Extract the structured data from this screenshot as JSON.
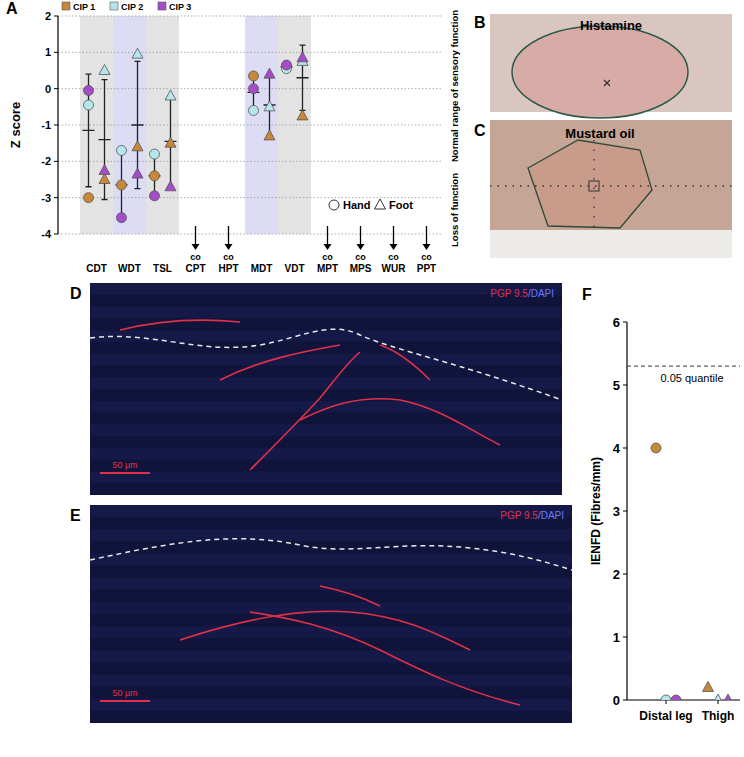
{
  "chart_data": [
    {
      "type": "scatter",
      "panel": "A",
      "y_label": "Z score",
      "categories": [
        "CDT",
        "WDT",
        "TSL",
        "CPT",
        "HPT",
        "MDT",
        "VDT",
        "MPT",
        "MPS",
        "WUR",
        "PPT"
      ],
      "ylim": [
        -4,
        2
      ],
      "yticks": [
        -4,
        -3,
        -2,
        -1,
        0,
        1,
        2
      ],
      "grid": true,
      "legend": "top",
      "series": [
        {
          "name": "CIP 1",
          "color": "#c8883a",
          "marker": "circle",
          "values": [
            -3.0,
            -2.65,
            -2.4,
            null,
            null,
            0.35,
            0.6,
            null,
            null,
            null,
            null
          ]
        },
        {
          "name": "CIP 2",
          "color": "#b5e6ec",
          "marker": "circle",
          "values": [
            -0.45,
            -1.7,
            -1.8,
            null,
            null,
            -0.6,
            0.55,
            null,
            null,
            null,
            null
          ]
        },
        {
          "name": "CIP 3",
          "color": "#a64cc8",
          "marker": "circle",
          "values": [
            -0.05,
            -3.55,
            -2.95,
            null,
            null,
            0.0,
            0.65,
            null,
            null,
            null,
            null
          ]
        },
        {
          "name": "CIP 1",
          "color": "#c8883a",
          "marker": "triangle",
          "values": [
            -2.5,
            -1.6,
            -1.5,
            null,
            null,
            -1.3,
            -0.75,
            null,
            null,
            null,
            null
          ]
        },
        {
          "name": "CIP 2",
          "color": "#b5e6ec",
          "marker": "triangle",
          "values": [
            0.5,
            0.95,
            -0.2,
            null,
            null,
            -0.5,
            0.75,
            null,
            null,
            null,
            null
          ]
        },
        {
          "name": "CIP 3",
          "color": "#a64cc8",
          "marker": "triangle",
          "values": [
            -2.25,
            -2.35,
            -2.7,
            null,
            null,
            0.4,
            0.85,
            null,
            null,
            null,
            null
          ]
        }
      ],
      "summary": [
        {
          "marker": "circle",
          "mean": [
            -1.15,
            -2.65,
            -2.4,
            null,
            null,
            -0.1,
            0.6,
            null,
            null,
            null,
            null
          ],
          "sd": [
            1.55,
            0.9,
            0.6,
            null,
            null,
            0.5,
            0.05,
            null,
            null,
            null,
            null
          ]
        },
        {
          "marker": "triangle",
          "mean": [
            -1.4,
            -1.0,
            -1.45,
            null,
            null,
            -0.45,
            0.3,
            null,
            null,
            null,
            null
          ],
          "sd": [
            1.65,
            1.75,
            1.25,
            null,
            null,
            0.85,
            0.9,
            null,
            null,
            null,
            null
          ]
        }
      ],
      "markers": [
        {
          "label": "Hand",
          "marker": "circle"
        },
        {
          "label": "Foot",
          "marker": "triangle"
        }
      ],
      "annotations": {
        "text": "co",
        "categories": [
          "CPT",
          "HPT",
          "MPT",
          "MPS",
          "WUR",
          "PPT"
        ]
      }
    },
    {
      "type": "scatter",
      "panel": "F",
      "y_label": "IENFD (Fibres/mm)",
      "categories": [
        "Distal leg",
        "Thigh"
      ],
      "ylim": [
        0,
        6
      ],
      "yticks": [
        0,
        1,
        2,
        3,
        4,
        5,
        6
      ],
      "series": [
        {
          "name": "CIP 1",
          "color": "#c8883a",
          "marker": "circle",
          "values": [
            4.0,
            null
          ]
        },
        {
          "name": "CIP 2",
          "color": "#b5e6ec",
          "marker": "circle",
          "values": [
            0,
            null
          ]
        },
        {
          "name": "CIP 3",
          "color": "#a64cc8",
          "marker": "circle",
          "values": [
            0,
            null
          ]
        },
        {
          "name": "CIP 1",
          "color": "#c8883a",
          "marker": "triangle",
          "values": [
            null,
            0.2
          ]
        },
        {
          "name": "CIP 2",
          "color": "#b5e6ec",
          "marker": "triangle",
          "values": [
            null,
            0
          ]
        },
        {
          "name": "CIP 3",
          "color": "#a64cc8",
          "marker": "triangle",
          "values": [
            null,
            0
          ]
        }
      ],
      "reference_line": {
        "value": 5.3,
        "label": "0.05 quantile"
      }
    }
  ],
  "side_labels": [
    "Normal range of sensory function",
    "Loss of function"
  ],
  "images": [
    {
      "panel": "B",
      "label": "Histamine"
    },
    {
      "panel": "C",
      "label": "Mustard oil"
    },
    {
      "panel": "D",
      "stain": [
        "PGP 9.5",
        "/DAPI"
      ],
      "scale_bar": "50 µm"
    },
    {
      "panel": "E",
      "stain": [
        "PGP 9.5",
        "/DAPI"
      ],
      "scale_bar": "50 µm"
    }
  ]
}
